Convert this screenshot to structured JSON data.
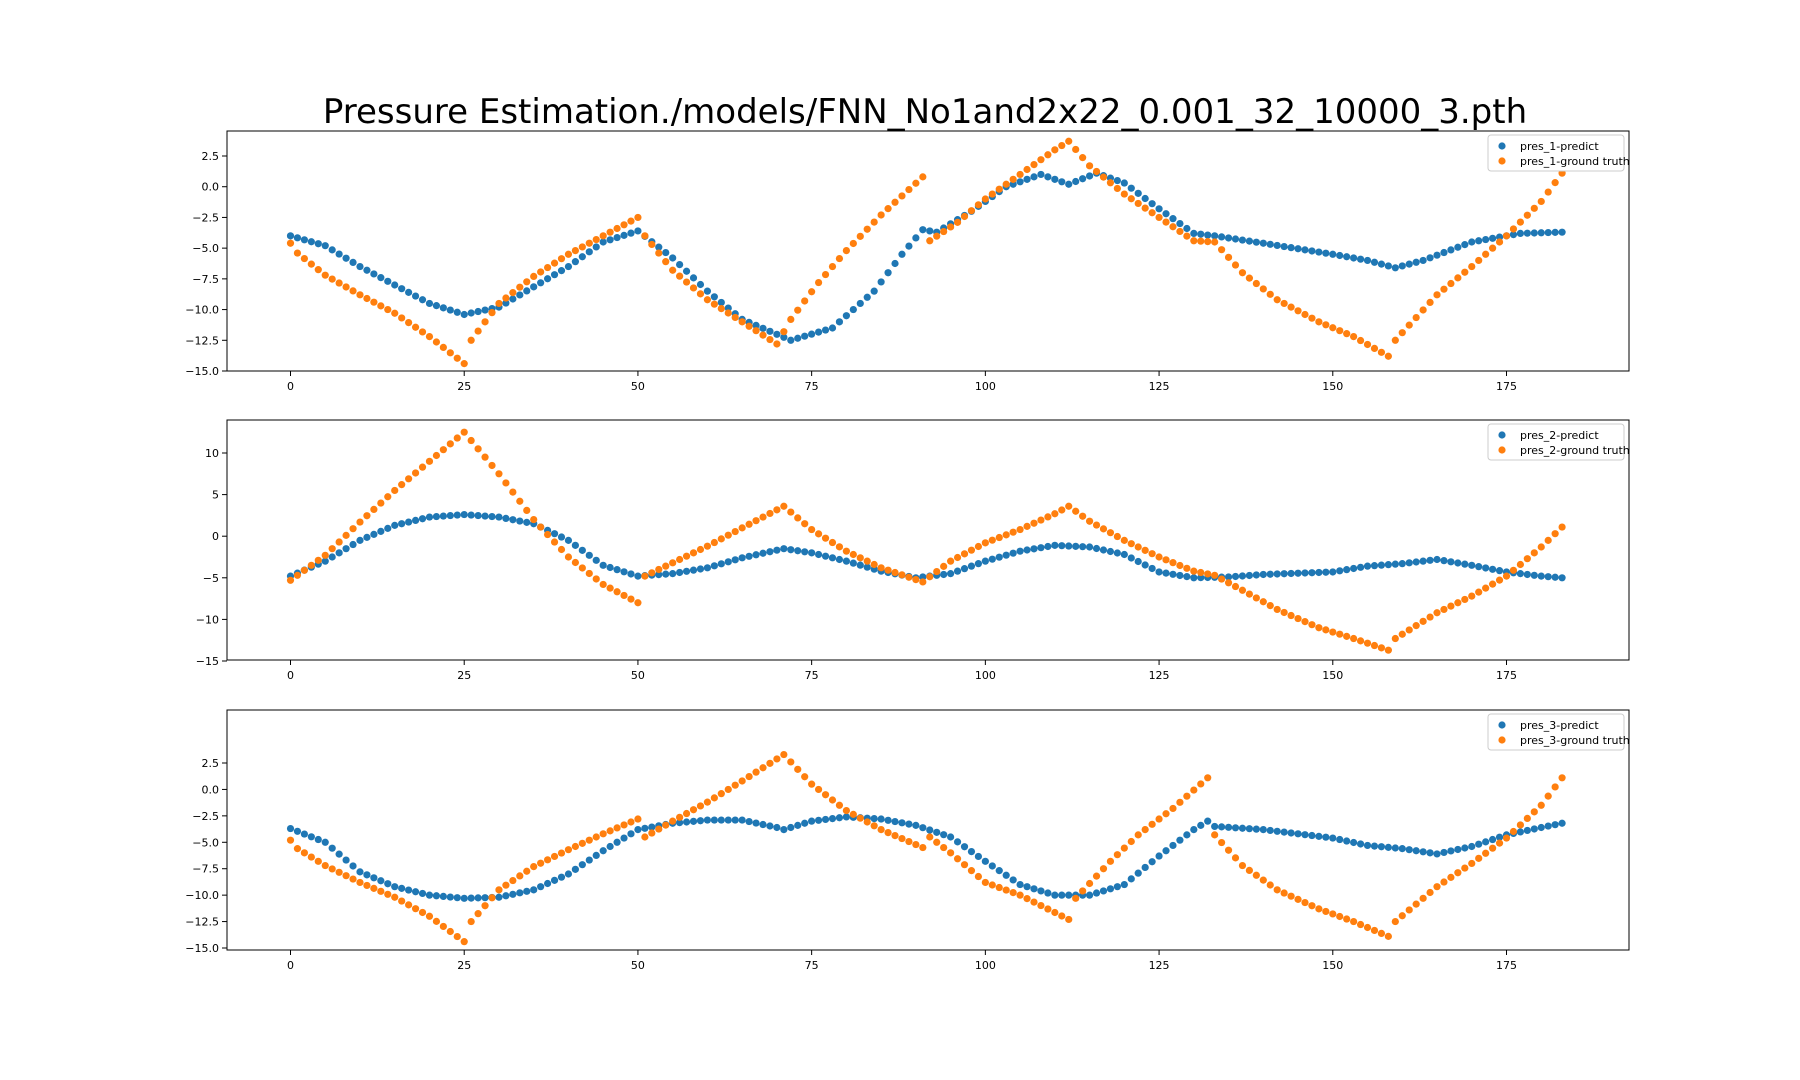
{
  "figure": {
    "title": "Pressure Estimation./models/FNN_No1and2x22_0.001_32_10000_3.pth"
  },
  "colors": {
    "predict": "#1f77b4",
    "ground_truth": "#ff7f0e"
  },
  "chart_data": [
    {
      "type": "scatter",
      "xlim": [
        -18,
        385
      ],
      "ylim": [
        -15,
        4.5
      ],
      "xticks": [
        0,
        25,
        50,
        75,
        100,
        125,
        150,
        175
      ],
      "xtick_labels": [
        "0",
        "25",
        "50",
        "75",
        "100",
        "125",
        "150",
        "175"
      ],
      "yticks": [
        2.5,
        0.0,
        -2.5,
        -5.0,
        -7.5,
        -10.0,
        -12.5,
        -15.0
      ],
      "ytick_labels": [
        "2.5",
        "0.0",
        "−2.5",
        "−5.0",
        "−7.5",
        "−10.0",
        "−12.5",
        "−15.0"
      ],
      "legend_position": "top-right",
      "series": [
        {
          "name": "pres_1-predict",
          "color": "#1f77b4",
          "keyframes": [
            [
              0,
              -4
            ],
            [
              5,
              -4.8
            ],
            [
              10,
              -6.5
            ],
            [
              20,
              -9.5
            ],
            [
              25,
              -10.4
            ],
            [
              30,
              -9.8
            ],
            [
              40,
              -6.5
            ],
            [
              45,
              -4.5
            ],
            [
              50,
              -3.6
            ],
            [
              55,
              -5.8
            ],
            [
              60,
              -8.5
            ],
            [
              65,
              -10.8
            ],
            [
              72,
              -12.5
            ],
            [
              78,
              -11.5
            ],
            [
              84,
              -8.5
            ],
            [
              88,
              -5.5
            ],
            [
              91,
              -3.5
            ],
            [
              93,
              -3.7
            ],
            [
              98,
              -2
            ],
            [
              103,
              0
            ],
            [
              108,
              1
            ],
            [
              112,
              0.2
            ],
            [
              116,
              1.1
            ],
            [
              120,
              0.3
            ],
            [
              125,
              -1.8
            ],
            [
              130,
              -3.8
            ],
            [
              133,
              -4
            ],
            [
              140,
              -4.6
            ],
            [
              150,
              -5.5
            ],
            [
              155,
              -6
            ],
            [
              159,
              -6.6
            ],
            [
              163,
              -6.0
            ],
            [
              170,
              -4.5
            ],
            [
              177,
              -3.8
            ],
            [
              183,
              -3.7
            ]
          ]
        },
        {
          "name": "pres_1-ground truth",
          "color": "#ff7f0e",
          "keyframes": [
            [
              0,
              -4.6
            ],
            [
              1,
              -5.4
            ],
            [
              5,
              -7.2
            ],
            [
              10,
              -8.8
            ],
            [
              15,
              -10.3
            ],
            [
              20,
              -12.2
            ],
            [
              25,
              -14.4
            ],
            [
              26,
              -12.5
            ],
            [
              30,
              -9.5
            ],
            [
              35,
              -7.3
            ],
            [
              40,
              -5.5
            ],
            [
              45,
              -4
            ],
            [
              50,
              -2.5
            ],
            [
              51,
              -4
            ],
            [
              55,
              -6.8
            ],
            [
              60,
              -9.2
            ],
            [
              65,
              -11
            ],
            [
              70,
              -12.8
            ],
            [
              72,
              -10.8
            ],
            [
              76,
              -7.8
            ],
            [
              80,
              -5.2
            ],
            [
              85,
              -2.3
            ],
            [
              91,
              0.8
            ],
            [
              92,
              -4.4
            ],
            [
              96,
              -2.9
            ],
            [
              100,
              -1
            ],
            [
              105,
              1
            ],
            [
              110,
              3
            ],
            [
              112,
              3.7
            ],
            [
              115,
              1.7
            ],
            [
              120,
              -0.6
            ],
            [
              125,
              -2.5
            ],
            [
              130,
              -4.4
            ],
            [
              133,
              -4.5
            ],
            [
              137,
              -7
            ],
            [
              142,
              -9.2
            ],
            [
              148,
              -11
            ],
            [
              153,
              -12.2
            ],
            [
              158,
              -13.8
            ],
            [
              159,
              -12.5
            ],
            [
              165,
              -8.8
            ],
            [
              170,
              -6.5
            ],
            [
              175,
              -4
            ],
            [
              180,
              -1.2
            ],
            [
              183,
              1.1
            ]
          ]
        }
      ]
    },
    {
      "type": "scatter",
      "xlim": [
        -18,
        385
      ],
      "ylim": [
        -15,
        14
      ],
      "xticks": [
        0,
        25,
        50,
        75,
        100,
        125,
        150,
        175
      ],
      "xtick_labels": [
        "0",
        "25",
        "50",
        "75",
        "100",
        "125",
        "150",
        "175"
      ],
      "yticks": [
        10,
        5,
        0,
        -5,
        -10,
        -15
      ],
      "ytick_labels": [
        "10",
        "5",
        "0",
        "−5",
        "−10",
        "−15"
      ],
      "legend_position": "top-right",
      "series": [
        {
          "name": "pres_2-predict",
          "color": "#1f77b4",
          "keyframes": [
            [
              0,
              -4.8
            ],
            [
              5,
              -3
            ],
            [
              10,
              -0.5
            ],
            [
              15,
              1.3
            ],
            [
              20,
              2.3
            ],
            [
              25,
              2.6
            ],
            [
              30,
              2.3
            ],
            [
              35,
              1.5
            ],
            [
              40,
              -0.5
            ],
            [
              45,
              -3.5
            ],
            [
              50,
              -4.8
            ],
            [
              55,
              -4.5
            ],
            [
              60,
              -3.8
            ],
            [
              65,
              -2.6
            ],
            [
              71,
              -1.5
            ],
            [
              75,
              -2
            ],
            [
              80,
              -3
            ],
            [
              85,
              -4.2
            ],
            [
              90,
              -5
            ],
            [
              95,
              -4.5
            ],
            [
              100,
              -3
            ],
            [
              105,
              -1.8
            ],
            [
              110,
              -1.1
            ],
            [
              115,
              -1.3
            ],
            [
              120,
              -2.2
            ],
            [
              125,
              -4.3
            ],
            [
              130,
              -5
            ],
            [
              135,
              -4.9
            ],
            [
              140,
              -4.6
            ],
            [
              150,
              -4.3
            ],
            [
              155,
              -3.6
            ],
            [
              160,
              -3.3
            ],
            [
              165,
              -2.8
            ],
            [
              170,
              -3.5
            ],
            [
              175,
              -4.3
            ],
            [
              180,
              -4.8
            ],
            [
              183,
              -5
            ]
          ]
        },
        {
          "name": "pres_2-ground truth",
          "color": "#ff7f0e",
          "keyframes": [
            [
              0,
              -5.3
            ],
            [
              5,
              -2.3
            ],
            [
              10,
              1.7
            ],
            [
              15,
              5.5
            ],
            [
              20,
              9
            ],
            [
              25,
              12.5
            ],
            [
              30,
              7.5
            ],
            [
              35,
              2
            ],
            [
              40,
              -2.5
            ],
            [
              45,
              -5.8
            ],
            [
              50,
              -8
            ],
            [
              51,
              -4.8
            ],
            [
              55,
              -3.2
            ],
            [
              60,
              -1.2
            ],
            [
              65,
              1
            ],
            [
              71,
              3.6
            ],
            [
              75,
              0.8
            ],
            [
              80,
              -1.8
            ],
            [
              85,
              -3.8
            ],
            [
              91,
              -5.5
            ],
            [
              95,
              -3
            ],
            [
              100,
              -0.8
            ],
            [
              105,
              0.8
            ],
            [
              110,
              2.7
            ],
            [
              112,
              3.6
            ],
            [
              115,
              1.8
            ],
            [
              120,
              -0.5
            ],
            [
              125,
              -2.5
            ],
            [
              130,
              -4.2
            ],
            [
              133,
              -4.7
            ],
            [
              137,
              -6.5
            ],
            [
              142,
              -8.8
            ],
            [
              148,
              -11
            ],
            [
              153,
              -12.3
            ],
            [
              158,
              -13.7
            ],
            [
              159,
              -12.3
            ],
            [
              165,
              -9.2
            ],
            [
              170,
              -7.2
            ],
            [
              175,
              -4.8
            ],
            [
              180,
              -1.3
            ],
            [
              183,
              1.1
            ]
          ]
        }
      ]
    },
    {
      "type": "scatter",
      "xlim": [
        -18,
        385
      ],
      "ylim": [
        -15,
        4.5
      ],
      "xticks": [
        0,
        25,
        50,
        75,
        100,
        125,
        150,
        175
      ],
      "xtick_labels": [
        "0",
        "25",
        "50",
        "75",
        "100",
        "125",
        "150",
        "175"
      ],
      "yticks": [
        2.5,
        0.0,
        -2.5,
        -5.0,
        -7.5,
        -10.0,
        -12.5,
        -15.0
      ],
      "ytick_labels": [
        "2.5",
        "0.0",
        "−2.5",
        "−5.0",
        "−7.5",
        "−10.0",
        "−12.5",
        "−15.0"
      ],
      "legend_position": "top-right",
      "series": [
        {
          "name": "pres_3-predict",
          "color": "#1f77b4",
          "keyframes": [
            [
              0,
              -3.7
            ],
            [
              5,
              -5
            ],
            [
              10,
              -7.8
            ],
            [
              15,
              -9.2
            ],
            [
              20,
              -10
            ],
            [
              25,
              -10.3
            ],
            [
              30,
              -10.2
            ],
            [
              35,
              -9.5
            ],
            [
              40,
              -8
            ],
            [
              45,
              -5.8
            ],
            [
              50,
              -3.8
            ],
            [
              55,
              -3.2
            ],
            [
              60,
              -2.9
            ],
            [
              65,
              -2.9
            ],
            [
              70,
              -3.6
            ],
            [
              71,
              -3.8
            ],
            [
              75,
              -3
            ],
            [
              80,
              -2.6
            ],
            [
              85,
              -2.8
            ],
            [
              90,
              -3.4
            ],
            [
              95,
              -4.5
            ],
            [
              100,
              -6.8
            ],
            [
              105,
              -9
            ],
            [
              110,
              -10
            ],
            [
              115,
              -10
            ],
            [
              120,
              -9
            ],
            [
              125,
              -6.3
            ],
            [
              130,
              -3.8
            ],
            [
              132,
              -3
            ],
            [
              133,
              -3.5
            ],
            [
              140,
              -3.8
            ],
            [
              150,
              -4.6
            ],
            [
              155,
              -5.3
            ],
            [
              160,
              -5.6
            ],
            [
              165,
              -6.1
            ],
            [
              170,
              -5.4
            ],
            [
              175,
              -4.3
            ],
            [
              180,
              -3.6
            ],
            [
              183,
              -3.2
            ]
          ]
        },
        {
          "name": "pres_3-ground truth",
          "color": "#ff7f0e",
          "keyframes": [
            [
              0,
              -4.8
            ],
            [
              1,
              -5.6
            ],
            [
              5,
              -7.2
            ],
            [
              10,
              -8.8
            ],
            [
              15,
              -10.2
            ],
            [
              20,
              -12
            ],
            [
              25,
              -14.4
            ],
            [
              26,
              -12.5
            ],
            [
              30,
              -9.5
            ],
            [
              35,
              -7.3
            ],
            [
              40,
              -5.7
            ],
            [
              45,
              -4.2
            ],
            [
              50,
              -2.8
            ],
            [
              51,
              -4.5
            ],
            [
              55,
              -3
            ],
            [
              60,
              -1.2
            ],
            [
              65,
              0.8
            ],
            [
              71,
              3.3
            ],
            [
              75,
              0.5
            ],
            [
              80,
              -2
            ],
            [
              85,
              -3.8
            ],
            [
              91,
              -5.5
            ],
            [
              92,
              -4.5
            ],
            [
              95,
              -6
            ],
            [
              100,
              -8.8
            ],
            [
              105,
              -10
            ],
            [
              112,
              -12.3
            ],
            [
              113,
              -10.3
            ],
            [
              118,
              -6.8
            ],
            [
              122,
              -4.3
            ],
            [
              127,
              -1.8
            ],
            [
              132,
              1.1
            ],
            [
              133,
              -4.3
            ],
            [
              137,
              -7.2
            ],
            [
              142,
              -9.5
            ],
            [
              148,
              -11.3
            ],
            [
              153,
              -12.5
            ],
            [
              158,
              -13.9
            ],
            [
              159,
              -12.5
            ],
            [
              165,
              -9.2
            ],
            [
              170,
              -7
            ],
            [
              175,
              -4.6
            ],
            [
              180,
              -1.5
            ],
            [
              183,
              1.1
            ]
          ]
        }
      ]
    }
  ]
}
